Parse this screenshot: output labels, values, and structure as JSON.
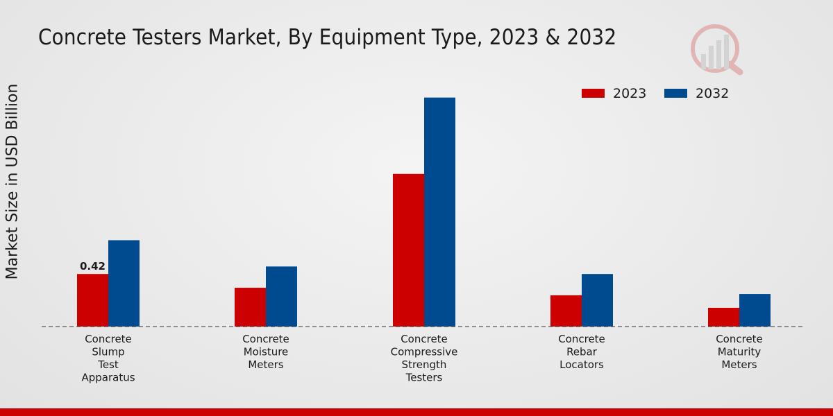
{
  "chart_data": {
    "type": "bar",
    "title": "Concrete Testers Market, By Equipment Type, 2023 & 2032",
    "xlabel": "",
    "ylabel": "Market Size in USD Billion",
    "ylim": [
      0,
      2.0
    ],
    "grid": false,
    "legend_position": "top-right",
    "categories": [
      "Concrete Slump Test Apparatus",
      "Concrete Moisture Meters",
      "Concrete Compressive Strength Testers",
      "Concrete Rebar Locators",
      "Concrete Maturity Meters"
    ],
    "category_lines": [
      [
        "Concrete",
        "Slump",
        "Test",
        "Apparatus"
      ],
      [
        "Concrete",
        "Moisture",
        "Meters"
      ],
      [
        "Concrete",
        "Compressive",
        "Strength",
        "Testers"
      ],
      [
        "Concrete",
        "Rebar",
        "Locators"
      ],
      [
        "Concrete",
        "Maturity",
        "Meters"
      ]
    ],
    "series": [
      {
        "name": "2023",
        "color": "#cc0000",
        "values": [
          0.42,
          0.31,
          1.22,
          0.25,
          0.15
        ]
      },
      {
        "name": "2032",
        "color": "#004a8f",
        "values": [
          0.69,
          0.48,
          1.83,
          0.42,
          0.26
        ]
      }
    ],
    "data_labels": [
      {
        "series": 0,
        "category": 0,
        "text": "0.42"
      }
    ]
  }
}
